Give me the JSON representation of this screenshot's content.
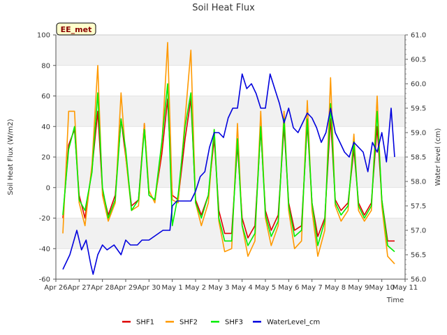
{
  "chart_data": {
    "type": "line",
    "title": "Soil Heat Flux",
    "badge": "EE_met",
    "xlabel": "Time",
    "ylabel_left": "Soil Heat Flux (W/m2)",
    "ylabel_right": "Water level (cm)",
    "x_ticks": [
      "Apr 26",
      "Apr 27",
      "Apr 28",
      "Apr 29",
      "Apr 30",
      "May 1",
      "May 2",
      "May 3",
      "May 4",
      "May 5",
      "May 6",
      "May 7",
      "May 8",
      "May 9",
      "May 10",
      "May 11"
    ],
    "x_range_days": [
      0,
      15
    ],
    "y_left": {
      "min": -60,
      "max": 100,
      "ticks": [
        -60,
        -40,
        -20,
        0,
        20,
        40,
        60,
        80,
        100
      ]
    },
    "y_right": {
      "min": 56.0,
      "max": 61.0,
      "ticks": [
        "56.0",
        "56.5",
        "57.0",
        "57.5",
        "58.0",
        "58.5",
        "59.0",
        "59.5",
        "60.0",
        "60.5",
        "61.0"
      ]
    },
    "series": [
      {
        "name": "SHF1",
        "color": "#dd0000",
        "axis": "left",
        "x": [
          0.3,
          0.55,
          0.8,
          1.0,
          1.25,
          1.55,
          1.8,
          2.0,
          2.25,
          2.55,
          2.8,
          3.0,
          3.25,
          3.55,
          3.8,
          4.0,
          4.25,
          4.55,
          4.8,
          5.0,
          5.25,
          5.55,
          5.8,
          6.0,
          6.25,
          6.55,
          6.8,
          7.0,
          7.25,
          7.55,
          7.8,
          8.0,
          8.25,
          8.55,
          8.8,
          9.0,
          9.25,
          9.55,
          9.8,
          10.0,
          10.25,
          10.55,
          10.8,
          11.0,
          11.25,
          11.55,
          11.8,
          12.0,
          12.25,
          12.55,
          12.8,
          13.0,
          13.25,
          13.55,
          13.8,
          14.0,
          14.25,
          14.55
        ],
        "values": [
          -20,
          28,
          38,
          -5,
          -20,
          12,
          50,
          -2,
          -18,
          -5,
          45,
          20,
          -12,
          -8,
          42,
          -5,
          -8,
          22,
          58,
          -5,
          -8,
          32,
          58,
          -8,
          -18,
          -5,
          32,
          -15,
          -30,
          -30,
          28,
          -20,
          -33,
          -25,
          38,
          -15,
          -28,
          -18,
          40,
          -10,
          -28,
          -25,
          42,
          -10,
          -32,
          -20,
          45,
          -8,
          -15,
          -10,
          25,
          -10,
          -18,
          -10,
          40,
          -8,
          -35,
          -35
        ]
      },
      {
        "name": "SHF2",
        "color": "#ff9900",
        "axis": "left",
        "x": [
          0.3,
          0.55,
          0.8,
          1.0,
          1.25,
          1.55,
          1.8,
          2.0,
          2.25,
          2.55,
          2.8,
          3.0,
          3.25,
          3.55,
          3.8,
          4.0,
          4.25,
          4.55,
          4.8,
          5.0,
          5.25,
          5.55,
          5.8,
          6.0,
          6.25,
          6.55,
          6.8,
          7.0,
          7.25,
          7.55,
          7.8,
          8.0,
          8.25,
          8.55,
          8.8,
          9.0,
          9.25,
          9.55,
          9.8,
          10.0,
          10.25,
          10.55,
          10.8,
          11.0,
          11.25,
          11.55,
          11.8,
          12.0,
          12.25,
          12.55,
          12.8,
          13.0,
          13.25,
          13.55,
          13.8,
          14.0,
          14.25,
          14.55
        ],
        "values": [
          -30,
          50,
          50,
          -10,
          -25,
          15,
          80,
          -5,
          -22,
          -10,
          62,
          20,
          -15,
          -12,
          42,
          -2,
          -10,
          28,
          95,
          -8,
          -10,
          45,
          90,
          -10,
          -25,
          -10,
          38,
          -22,
          -42,
          -40,
          42,
          -25,
          -45,
          -35,
          50,
          -20,
          -38,
          -25,
          50,
          -15,
          -40,
          -35,
          57,
          -15,
          -45,
          -28,
          72,
          -12,
          -22,
          -15,
          35,
          -15,
          -22,
          -15,
          60,
          -12,
          -45,
          -50
        ]
      },
      {
        "name": "SHF3",
        "color": "#00ee00",
        "axis": "left",
        "x": [
          0.3,
          0.55,
          0.8,
          1.0,
          1.25,
          1.55,
          1.8,
          2.0,
          2.25,
          2.55,
          2.8,
          3.0,
          3.25,
          3.55,
          3.8,
          4.0,
          4.25,
          4.55,
          4.8,
          5.0,
          5.25,
          5.55,
          5.8,
          6.0,
          6.25,
          6.55,
          6.8,
          7.0,
          7.25,
          7.55,
          7.8,
          8.0,
          8.25,
          8.55,
          8.8,
          9.0,
          9.25,
          9.55,
          9.8,
          10.0,
          10.25,
          10.55,
          10.8,
          11.0,
          11.25,
          11.55,
          11.8,
          12.0,
          12.25,
          12.55,
          12.8,
          13.0,
          13.25,
          13.55,
          13.8,
          14.0,
          14.25,
          14.55
        ],
        "values": [
          -18,
          25,
          40,
          -8,
          -15,
          10,
          62,
          0,
          -20,
          -8,
          45,
          25,
          -15,
          -8,
          38,
          -5,
          -8,
          30,
          68,
          -25,
          -5,
          40,
          62,
          -10,
          -20,
          -5,
          38,
          -20,
          -35,
          -35,
          32,
          -25,
          -38,
          -30,
          40,
          -18,
          -32,
          -22,
          45,
          -12,
          -32,
          -28,
          45,
          -10,
          -38,
          -22,
          55,
          -10,
          -18,
          -12,
          30,
          -12,
          -20,
          -12,
          50,
          -8,
          -38,
          -42
        ]
      },
      {
        "name": "WaterLevel_cm",
        "color": "#0000dd",
        "axis": "right",
        "x": [
          0.3,
          0.6,
          0.9,
          1.1,
          1.3,
          1.5,
          1.6,
          1.8,
          2.0,
          2.2,
          2.5,
          2.8,
          3.0,
          3.2,
          3.5,
          3.7,
          4.0,
          4.3,
          4.6,
          4.9,
          5.0,
          5.2,
          5.5,
          5.8,
          6.0,
          6.2,
          6.4,
          6.6,
          6.8,
          7.0,
          7.2,
          7.4,
          7.6,
          7.8,
          8.0,
          8.2,
          8.4,
          8.6,
          8.8,
          9.0,
          9.2,
          9.4,
          9.6,
          9.8,
          10.0,
          10.2,
          10.4,
          10.6,
          10.8,
          11.0,
          11.2,
          11.4,
          11.6,
          11.8,
          12.0,
          12.2,
          12.4,
          12.6,
          12.8,
          13.0,
          13.2,
          13.4,
          13.6,
          13.8,
          14.0,
          14.2,
          14.4,
          14.55
        ],
        "values": [
          56.2,
          56.5,
          57.0,
          56.6,
          56.8,
          56.3,
          56.1,
          56.5,
          56.7,
          56.6,
          56.7,
          56.5,
          56.8,
          56.7,
          56.7,
          56.8,
          56.8,
          56.9,
          57.0,
          57.0,
          57.5,
          57.6,
          57.6,
          57.6,
          57.8,
          58.1,
          58.2,
          58.7,
          59.0,
          59.0,
          58.9,
          59.3,
          59.5,
          59.5,
          60.2,
          59.9,
          60.0,
          59.8,
          59.5,
          59.5,
          60.2,
          59.9,
          59.6,
          59.2,
          59.5,
          59.1,
          59.0,
          59.2,
          59.4,
          59.3,
          59.1,
          58.8,
          59.0,
          59.5,
          59.0,
          58.8,
          58.6,
          58.5,
          58.8,
          58.7,
          58.6,
          58.2,
          58.8,
          58.6,
          59.0,
          58.4,
          59.5,
          58.5
        ]
      }
    ],
    "legend_position": "bottom-center",
    "grid": "alternating horizontal bands"
  }
}
